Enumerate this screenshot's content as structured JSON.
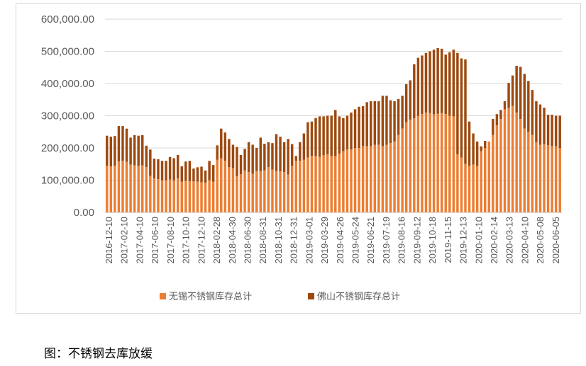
{
  "caption": "图：不锈钢去库放缓",
  "chart_data": {
    "type": "bar",
    "stacked": true,
    "ylim": [
      0,
      600000
    ],
    "yticks": [
      "0.00",
      "100,000.00",
      "200,000.00",
      "300,000.00",
      "400,000.00",
      "500,000.00",
      "600,000.00"
    ],
    "ytick_values": [
      0,
      100000,
      200000,
      300000,
      400000,
      500000,
      600000
    ],
    "xtick_labels": [
      "2016-12-10",
      "2017-02-10",
      "2017-04-10",
      "2017-06-10",
      "2017-08-10",
      "2017-10-10",
      "2017-12-10",
      "2018-02-28",
      "2018-04-30",
      "2018-06-30",
      "2018-08-31",
      "2018-10-31",
      "2018-12-31",
      "2019-03-01",
      "2019-03-29",
      "2019-04-26",
      "2019-05-24",
      "2019-06-21",
      "2019-07-19",
      "2019-08-16",
      "2019-09-12",
      "2019-10-18",
      "2019-11-15",
      "2019-12-13",
      "2020-01-10",
      "2020-02-14",
      "2020-03-13",
      "2020-04-10",
      "2020-05-08",
      "2020-06-05"
    ],
    "grid": true,
    "legend_position": "bottom",
    "colors": {
      "wuxi": "#ED7D31",
      "foshan": "#9E480E"
    },
    "series": [
      {
        "name": "无锡不锈钢库存总计",
        "values": [
          145000,
          143000,
          145000,
          158000,
          160000,
          157000,
          148000,
          146000,
          145000,
          146000,
          140000,
          113000,
          105000,
          103000,
          100000,
          100000,
          102000,
          100000,
          105000,
          95000,
          98000,
          97000,
          96000,
          95000,
          93000,
          92000,
          100000,
          95000,
          163000,
          168000,
          160000,
          140000,
          137000,
          112000,
          118000,
          130000,
          125000,
          120000,
          128000,
          128000,
          130000,
          140000,
          133000,
          128000,
          127000,
          125000,
          117000,
          145000,
          160000,
          160000,
          163000,
          170000,
          175000,
          175000,
          172000,
          178000,
          180000,
          175000,
          175000,
          182000,
          190000,
          195000,
          195000,
          200000,
          200000,
          205000,
          205000,
          205000,
          210000,
          210000,
          205000,
          210000,
          215000,
          220000,
          240000,
          260000,
          280000,
          288000,
          292000,
          300000,
          305000,
          310000,
          308000,
          304000,
          306000,
          308000,
          305000,
          300000,
          298000,
          180000,
          170000,
          150000,
          145000,
          148000,
          145000,
          190000,
          200000,
          220000,
          240000,
          270000,
          290000,
          320000,
          325000,
          330000,
          310000,
          290000,
          260000,
          250000,
          240000,
          218000,
          210000,
          212000,
          208000,
          205000,
          205000,
          200000
        ],
        "totals": [
          238000,
          235000,
          237000,
          268000,
          268000,
          260000,
          232000,
          240000,
          238000,
          240000,
          207000,
          195000,
          167000,
          165000,
          160000,
          160000,
          172000,
          168000,
          178000,
          143000,
          158000,
          160000,
          136000,
          140000,
          142000,
          130000,
          160000,
          147000,
          208000,
          260000,
          248000,
          228000,
          210000,
          203000,
          178000,
          197000,
          218000,
          210000,
          200000,
          232000,
          213000,
          218000,
          215000,
          243000,
          235000,
          218000,
          228000,
          212000,
          175000,
          218000,
          245000,
          280000,
          282000,
          293000,
          298000,
          298000,
          300000,
          300000,
          318000,
          298000,
          293000,
          300000,
          310000,
          320000,
          328000,
          330000,
          342000,
          345000,
          345000,
          345000,
          362000,
          362000,
          348000,
          345000,
          352000,
          362000,
          398000,
          410000,
          460000,
          480000,
          487000,
          495000,
          500000,
          505000,
          510000,
          508000,
          490000,
          497000,
          505000,
          495000,
          478000,
          475000,
          282000,
          245000,
          220000,
          205000,
          222000,
          218000,
          290000,
          305000,
          318000,
          345000,
          402000,
          425000,
          455000,
          452000,
          430000,
          408000,
          380000,
          345000,
          335000,
          325000,
          303000,
          303000,
          300000,
          300000,
          302000,
          313000
        ]
      },
      {
        "name": "佛山不锈钢库存总计",
        "values": []
      }
    ]
  }
}
